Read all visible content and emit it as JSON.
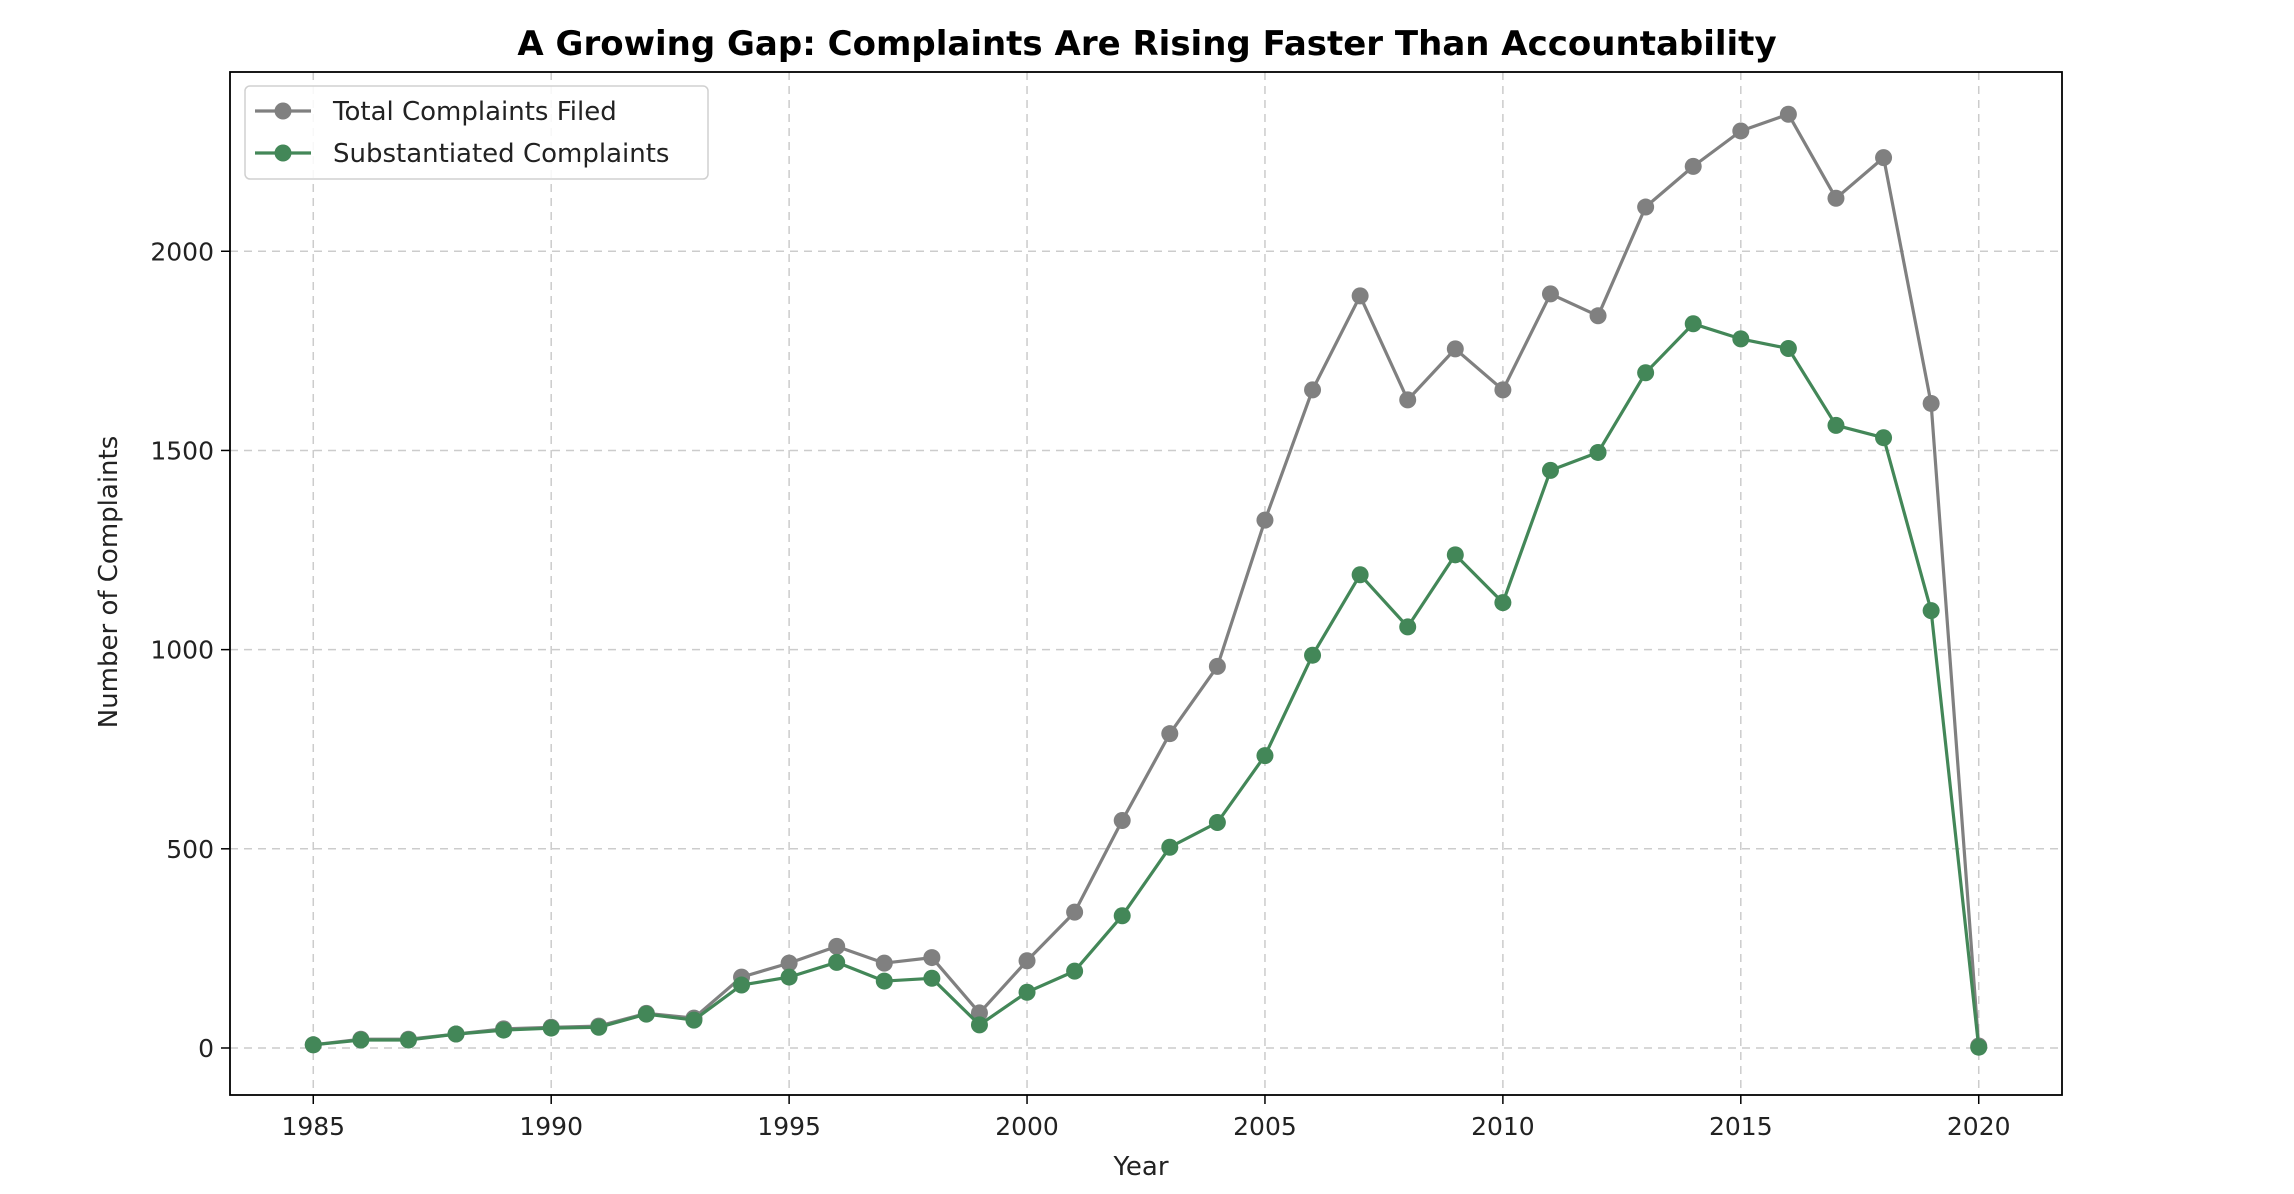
{
  "chart_data": {
    "type": "line",
    "title": "A Growing Gap: Complaints Are Rising Faster Than Accountability",
    "xlabel": "Year",
    "ylabel": "Number of Complaints",
    "xlim": [
      1983.25,
      2021.75
    ],
    "ylim": [
      -118,
      2450
    ],
    "xticks": [
      1985,
      1990,
      1995,
      2000,
      2005,
      2010,
      2015,
      2020
    ],
    "yticks": [
      0,
      500,
      1000,
      1500,
      2000
    ],
    "grid": true,
    "legend_position": "top-left",
    "x": [
      1985,
      1986,
      1987,
      1988,
      1989,
      1990,
      1991,
      1992,
      1993,
      1994,
      1995,
      1996,
      1997,
      1998,
      1999,
      2000,
      2001,
      2002,
      2003,
      2004,
      2005,
      2006,
      2007,
      2008,
      2009,
      2010,
      2011,
      2012,
      2013,
      2014,
      2015,
      2016,
      2017,
      2018,
      2019,
      2020
    ],
    "series": [
      {
        "name": "Total Complaints Filed",
        "color": "#808080",
        "values": [
          8,
          22,
          22,
          35,
          48,
          52,
          55,
          87,
          75,
          178,
          213,
          255,
          213,
          227,
          88,
          219,
          341,
          571,
          789,
          958,
          1325,
          1652,
          1888,
          1627,
          1755,
          1652,
          1893,
          1838,
          2111,
          2213,
          2302,
          2344,
          2133,
          2235,
          1618,
          5
        ]
      },
      {
        "name": "Substantiated Complaints",
        "color": "#438758",
        "values": [
          8,
          20,
          20,
          35,
          45,
          50,
          52,
          85,
          70,
          158,
          178,
          215,
          168,
          175,
          58,
          140,
          193,
          332,
          504,
          566,
          734,
          986,
          1188,
          1057,
          1238,
          1118,
          1450,
          1495,
          1695,
          1818,
          1780,
          1756,
          1563,
          1532,
          1098,
          2
        ]
      }
    ]
  }
}
